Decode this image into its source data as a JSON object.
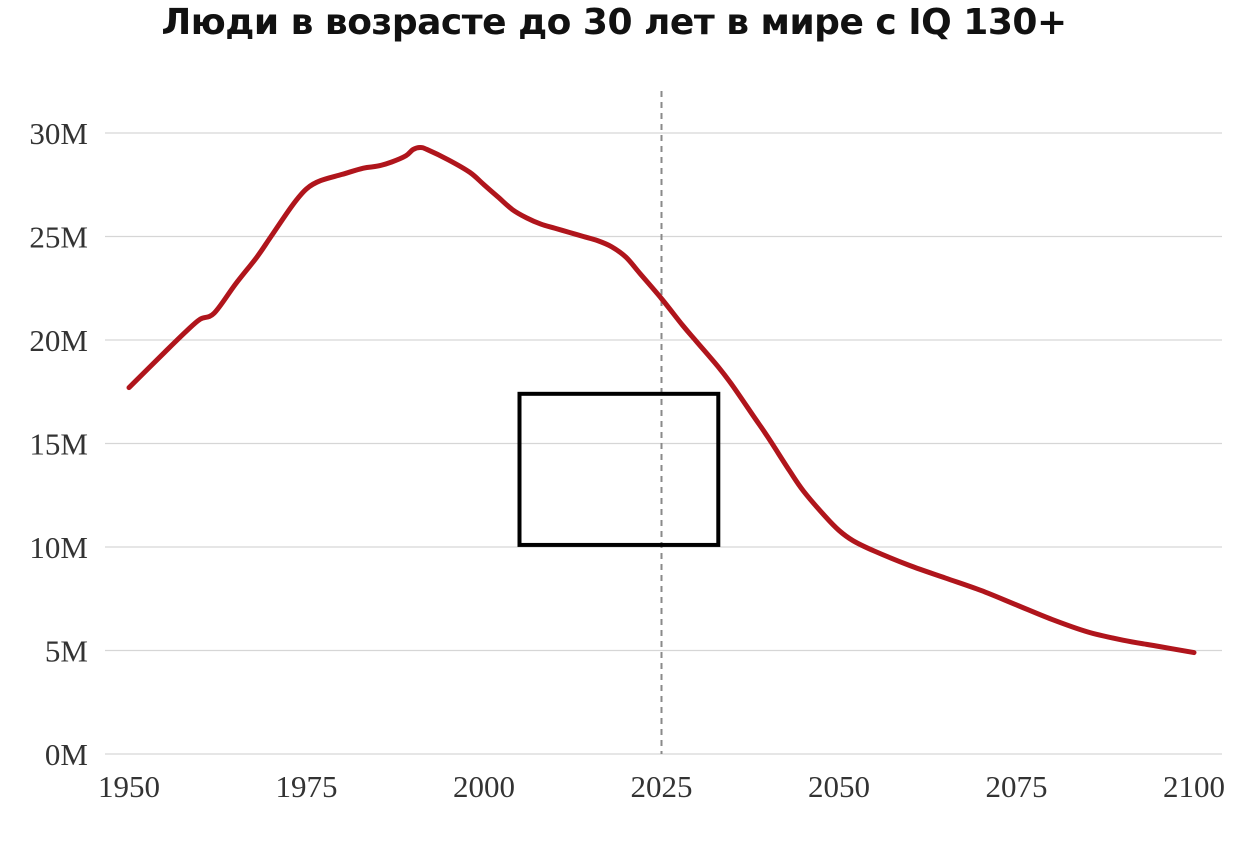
{
  "chart_data": {
    "type": "line",
    "title": "Люди в возрасте до 30 лет в мире с IQ 130+",
    "xlabel": "",
    "ylabel": "",
    "xlim": [
      1948,
      2106
    ],
    "ylim": [
      0,
      30000000
    ],
    "x_ticks": [
      1950,
      1975,
      2000,
      2025,
      2050,
      2075,
      2100
    ],
    "x_tick_labels": [
      "1950",
      "1975",
      "2000",
      "2025",
      "2050",
      "2075",
      "2100"
    ],
    "y_ticks": [
      0,
      5000000,
      10000000,
      15000000,
      20000000,
      25000000,
      30000000
    ],
    "y_tick_labels": [
      "0M",
      "5M",
      "10M",
      "15M",
      "20M",
      "25M",
      "30M"
    ],
    "grid": "horizontal",
    "reference_line_x": 2025,
    "highlight_box": {
      "x_range": [
        2005,
        2033
      ],
      "y_range": [
        10100000,
        17400000
      ]
    },
    "series": [
      {
        "color": "#b0151c",
        "x": [
          1950,
          1955,
          1958,
          1960,
          1962,
          1965,
          1968,
          1970,
          1973,
          1975,
          1977,
          1980,
          1983,
          1985,
          1987,
          1989,
          1990,
          1991,
          1992,
          1995,
          1998,
          2000,
          2002,
          2004,
          2006,
          2008,
          2010,
          2012,
          2014,
          2016,
          2018,
          2020,
          2022,
          2025,
          2028,
          2030,
          2033,
          2035,
          2038,
          2040,
          2043,
          2045,
          2048,
          2050,
          2052,
          2055,
          2060,
          2065,
          2070,
          2075,
          2080,
          2085,
          2090,
          2095,
          2100
        ],
        "values": [
          17700000,
          19400000,
          20400000,
          21000000,
          21300000,
          22700000,
          24000000,
          25000000,
          26500000,
          27300000,
          27700000,
          28000000,
          28300000,
          28400000,
          28600000,
          28900000,
          29200000,
          29300000,
          29200000,
          28700000,
          28100000,
          27500000,
          26900000,
          26300000,
          25900000,
          25600000,
          25400000,
          25200000,
          25000000,
          24800000,
          24500000,
          24000000,
          23200000,
          22000000,
          20700000,
          19900000,
          18700000,
          17800000,
          16300000,
          15300000,
          13700000,
          12700000,
          11500000,
          10800000,
          10300000,
          9800000,
          9100000,
          8500000,
          7900000,
          7200000,
          6500000,
          5900000,
          5500000,
          5200000,
          4900000
        ]
      }
    ]
  }
}
